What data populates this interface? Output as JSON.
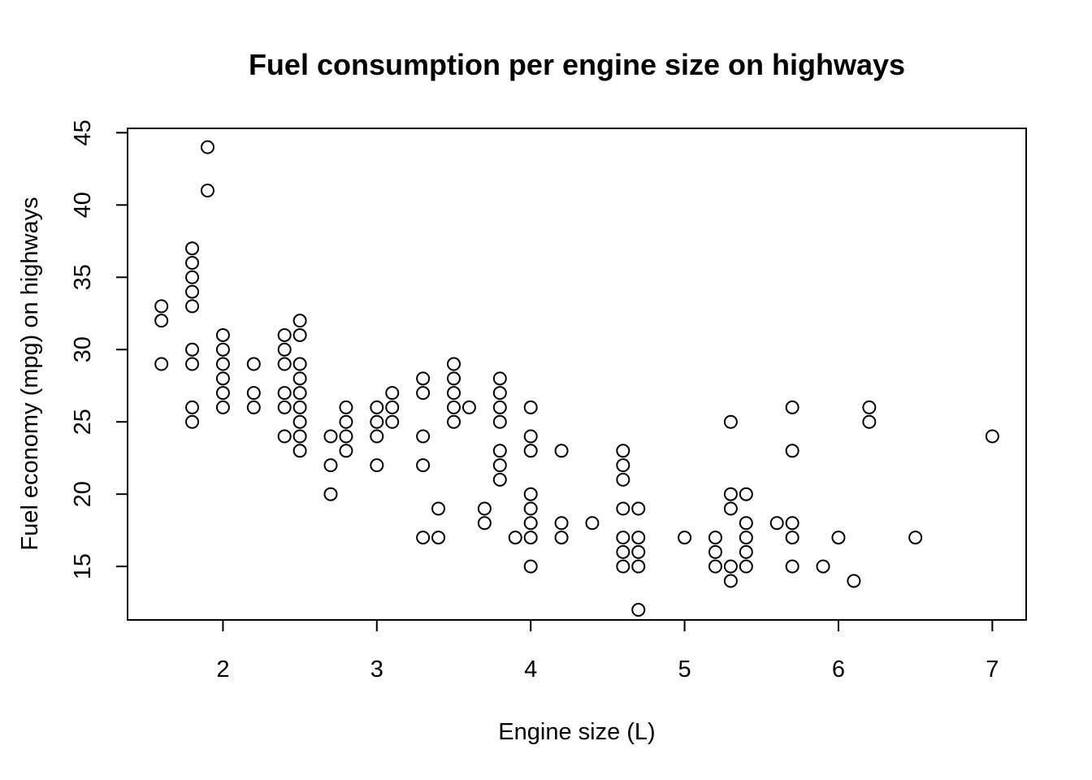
{
  "chart_data": {
    "type": "scatter",
    "title": "Fuel consumption per engine size on highways",
    "xlabel": "Engine size (L)",
    "ylabel": "Fuel economy (mpg) on highways",
    "xlim": [
      1.38,
      7.22
    ],
    "ylim": [
      11.3,
      45.3
    ],
    "xticks": [
      2,
      3,
      4,
      5,
      6,
      7
    ],
    "yticks": [
      15,
      20,
      25,
      30,
      35,
      40,
      45
    ],
    "grid": false,
    "legend": "none",
    "points": [
      [
        1.6,
        33
      ],
      [
        1.6,
        32
      ],
      [
        1.6,
        29
      ],
      [
        1.8,
        37
      ],
      [
        1.8,
        36
      ],
      [
        1.8,
        35
      ],
      [
        1.8,
        34
      ],
      [
        1.8,
        33
      ],
      [
        1.8,
        30
      ],
      [
        1.8,
        29
      ],
      [
        1.8,
        26
      ],
      [
        1.8,
        25
      ],
      [
        1.9,
        44
      ],
      [
        1.9,
        41
      ],
      [
        2.0,
        31
      ],
      [
        2.0,
        30
      ],
      [
        2.0,
        29
      ],
      [
        2.0,
        28
      ],
      [
        2.0,
        27
      ],
      [
        2.0,
        26
      ],
      [
        2.2,
        29
      ],
      [
        2.2,
        27
      ],
      [
        2.2,
        26
      ],
      [
        2.4,
        31
      ],
      [
        2.4,
        30
      ],
      [
        2.4,
        29
      ],
      [
        2.4,
        27
      ],
      [
        2.4,
        26
      ],
      [
        2.4,
        24
      ],
      [
        2.5,
        32
      ],
      [
        2.5,
        31
      ],
      [
        2.5,
        29
      ],
      [
        2.5,
        28
      ],
      [
        2.5,
        27
      ],
      [
        2.5,
        26
      ],
      [
        2.5,
        25
      ],
      [
        2.5,
        24
      ],
      [
        2.5,
        23
      ],
      [
        2.7,
        24
      ],
      [
        2.7,
        22
      ],
      [
        2.7,
        20
      ],
      [
        2.8,
        26
      ],
      [
        2.8,
        25
      ],
      [
        2.8,
        24
      ],
      [
        2.8,
        23
      ],
      [
        3.0,
        26
      ],
      [
        3.0,
        25
      ],
      [
        3.0,
        24
      ],
      [
        3.0,
        22
      ],
      [
        3.1,
        27
      ],
      [
        3.1,
        26
      ],
      [
        3.1,
        25
      ],
      [
        3.3,
        28
      ],
      [
        3.3,
        27
      ],
      [
        3.3,
        24
      ],
      [
        3.3,
        22
      ],
      [
        3.3,
        17
      ],
      [
        3.4,
        19
      ],
      [
        3.4,
        17
      ],
      [
        3.5,
        29
      ],
      [
        3.5,
        28
      ],
      [
        3.5,
        27
      ],
      [
        3.5,
        26
      ],
      [
        3.5,
        25
      ],
      [
        3.6,
        26
      ],
      [
        3.7,
        19
      ],
      [
        3.7,
        18
      ],
      [
        3.8,
        28
      ],
      [
        3.8,
        27
      ],
      [
        3.8,
        26
      ],
      [
        3.8,
        25
      ],
      [
        3.8,
        23
      ],
      [
        3.8,
        22
      ],
      [
        3.8,
        21
      ],
      [
        3.9,
        17
      ],
      [
        4.0,
        26
      ],
      [
        4.0,
        24
      ],
      [
        4.0,
        23
      ],
      [
        4.0,
        20
      ],
      [
        4.0,
        19
      ],
      [
        4.0,
        18
      ],
      [
        4.0,
        17
      ],
      [
        4.0,
        15
      ],
      [
        4.2,
        23
      ],
      [
        4.2,
        18
      ],
      [
        4.2,
        17
      ],
      [
        4.4,
        18
      ],
      [
        4.6,
        23
      ],
      [
        4.6,
        22
      ],
      [
        4.6,
        21
      ],
      [
        4.6,
        19
      ],
      [
        4.6,
        17
      ],
      [
        4.6,
        16
      ],
      [
        4.6,
        15
      ],
      [
        4.7,
        19
      ],
      [
        4.7,
        17
      ],
      [
        4.7,
        16
      ],
      [
        4.7,
        15
      ],
      [
        4.7,
        12
      ],
      [
        5.0,
        17
      ],
      [
        5.2,
        17
      ],
      [
        5.2,
        16
      ],
      [
        5.2,
        15
      ],
      [
        5.3,
        25
      ],
      [
        5.3,
        20
      ],
      [
        5.3,
        19
      ],
      [
        5.3,
        15
      ],
      [
        5.3,
        14
      ],
      [
        5.4,
        20
      ],
      [
        5.4,
        18
      ],
      [
        5.4,
        17
      ],
      [
        5.4,
        16
      ],
      [
        5.4,
        15
      ],
      [
        5.6,
        18
      ],
      [
        5.7,
        26
      ],
      [
        5.7,
        23
      ],
      [
        5.7,
        18
      ],
      [
        5.7,
        17
      ],
      [
        5.7,
        15
      ],
      [
        5.9,
        15
      ],
      [
        6.0,
        17
      ],
      [
        6.1,
        14
      ],
      [
        6.2,
        26
      ],
      [
        6.2,
        25
      ],
      [
        6.5,
        17
      ],
      [
        7.0,
        24
      ]
    ]
  }
}
